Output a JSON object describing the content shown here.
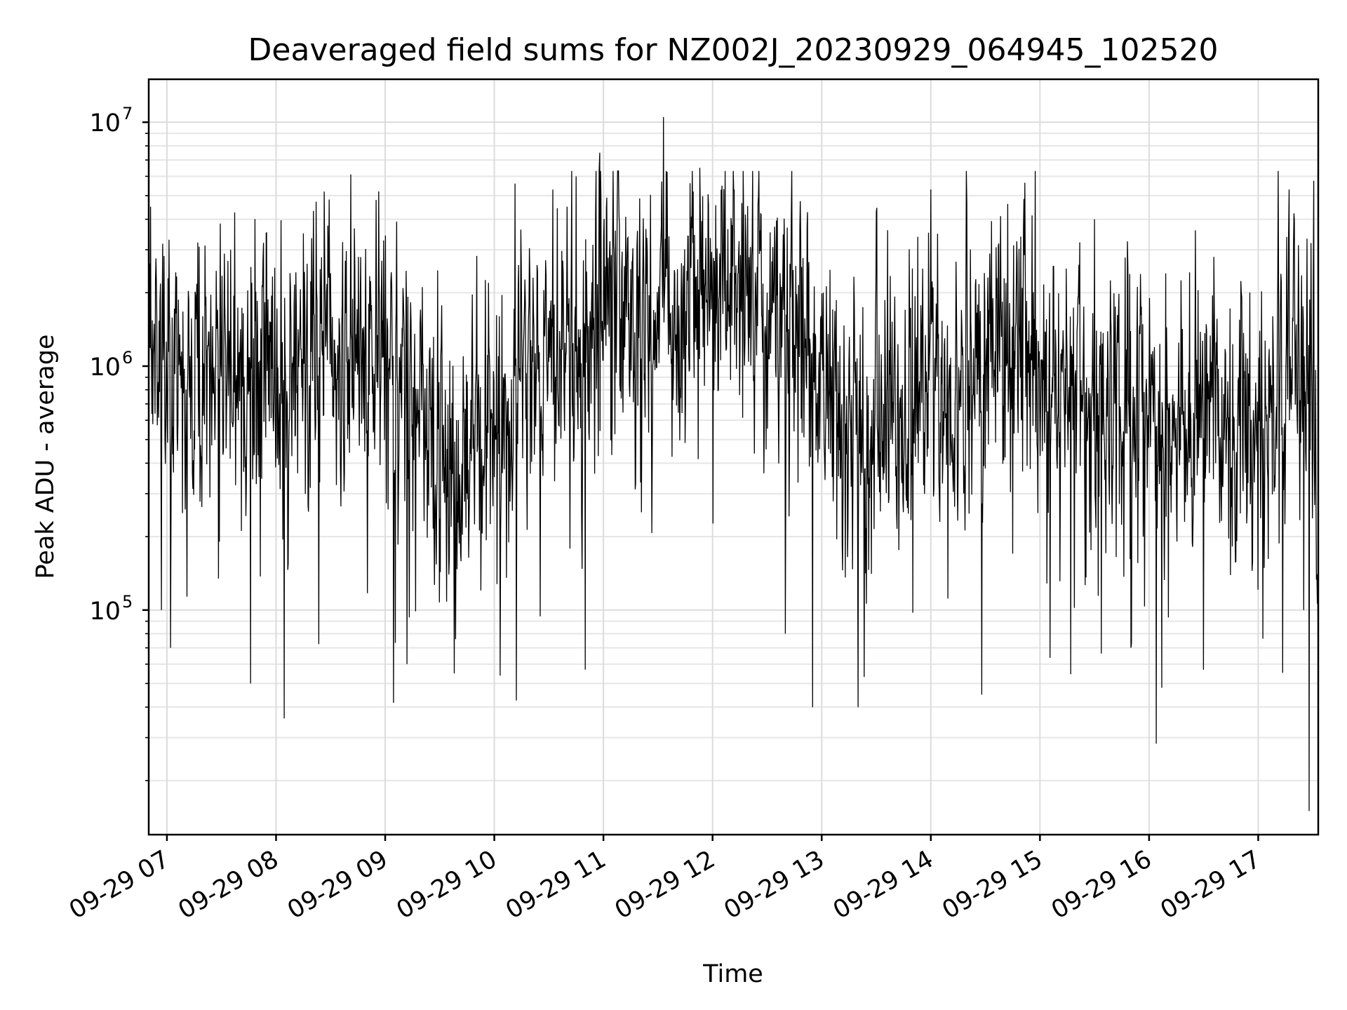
{
  "chart_data": {
    "type": "line",
    "title": "Deaveraged field sums for NZ002J_20230929_064945_102520",
    "xlabel": "Time",
    "ylabel": "Peak ADU - average",
    "yscale": "log",
    "grid": true,
    "color": "#000000",
    "x_start": "2023-09-29 06:50",
    "x_end": "2023-09-29 17:33",
    "xlim": [
      "2023-09-29 06:50",
      "2023-09-29 17:33"
    ],
    "ylim": [
      12000,
      15000000
    ],
    "x_ticks": [
      {
        "time": "2023-09-29 07:00",
        "label": "09-29 07"
      },
      {
        "time": "2023-09-29 08:00",
        "label": "09-29 08"
      },
      {
        "time": "2023-09-29 09:00",
        "label": "09-29 09"
      },
      {
        "time": "2023-09-29 10:00",
        "label": "09-29 10"
      },
      {
        "time": "2023-09-29 11:00",
        "label": "09-29 11"
      },
      {
        "time": "2023-09-29 12:00",
        "label": "09-29 12"
      },
      {
        "time": "2023-09-29 13:00",
        "label": "09-29 13"
      },
      {
        "time": "2023-09-29 14:00",
        "label": "09-29 14"
      },
      {
        "time": "2023-09-29 15:00",
        "label": "09-29 15"
      },
      {
        "time": "2023-09-29 16:00",
        "label": "09-29 16"
      },
      {
        "time": "2023-09-29 17:00",
        "label": "09-29 17"
      }
    ],
    "y_ticks": [
      {
        "value": 100000,
        "base": "10",
        "exp": "5"
      },
      {
        "value": 1000000,
        "base": "10",
        "exp": "6"
      },
      {
        "value": 10000000,
        "base": "10",
        "exp": "7"
      }
    ],
    "series": [
      {
        "values_sampled_approx": [
          {
            "time": "2023-09-29 06:50",
            "value": 900000
          },
          {
            "time": "2023-09-29 06:51",
            "value": 4500000
          },
          {
            "time": "2023-09-29 06:57",
            "value": 100000
          },
          {
            "time": "2023-09-29 07:02",
            "value": 70000
          },
          {
            "time": "2023-09-29 07:35",
            "value": 3000000
          },
          {
            "time": "2023-09-29 07:46",
            "value": 50000
          },
          {
            "time": "2023-09-29 08:15",
            "value": 3500000
          },
          {
            "time": "2023-09-29 08:55",
            "value": 4800000
          },
          {
            "time": "2023-09-29 09:12",
            "value": 60000
          },
          {
            "time": "2023-09-29 09:38",
            "value": 55000
          },
          {
            "time": "2023-09-29 09:45",
            "value": 300000
          },
          {
            "time": "2023-09-29 10:05",
            "value": 900000
          },
          {
            "time": "2023-09-29 10:40",
            "value": 4500000
          },
          {
            "time": "2023-09-29 10:45",
            "value": 6000000
          },
          {
            "time": "2023-09-29 10:50",
            "value": 57000
          },
          {
            "time": "2023-09-29 10:58",
            "value": 7500000
          },
          {
            "time": "2023-09-29 11:15",
            "value": 2500000
          },
          {
            "time": "2023-09-29 11:33",
            "value": 10500000
          },
          {
            "time": "2023-09-29 11:53",
            "value": 6500000
          },
          {
            "time": "2023-09-29 12:30",
            "value": 2000000
          },
          {
            "time": "2023-09-29 12:40",
            "value": 80000
          },
          {
            "time": "2023-09-29 12:55",
            "value": 40000
          },
          {
            "time": "2023-09-29 13:20",
            "value": 40000
          },
          {
            "time": "2023-09-29 14:00",
            "value": 5300000
          },
          {
            "time": "2023-09-29 14:28",
            "value": 45000
          },
          {
            "time": "2023-09-29 14:50",
            "value": 600000
          },
          {
            "time": "2023-09-29 15:30",
            "value": 4000000
          },
          {
            "time": "2023-09-29 15:50",
            "value": 70000
          },
          {
            "time": "2023-09-29 16:07",
            "value": 48000
          },
          {
            "time": "2023-09-29 16:40",
            "value": 900000
          },
          {
            "time": "2023-09-29 17:17",
            "value": 5300000
          },
          {
            "time": "2023-09-29 17:25",
            "value": 100000
          },
          {
            "time": "2023-09-29 17:28",
            "value": 15000
          },
          {
            "time": "2023-09-29 17:33",
            "value": 60000
          }
        ]
      }
    ]
  }
}
